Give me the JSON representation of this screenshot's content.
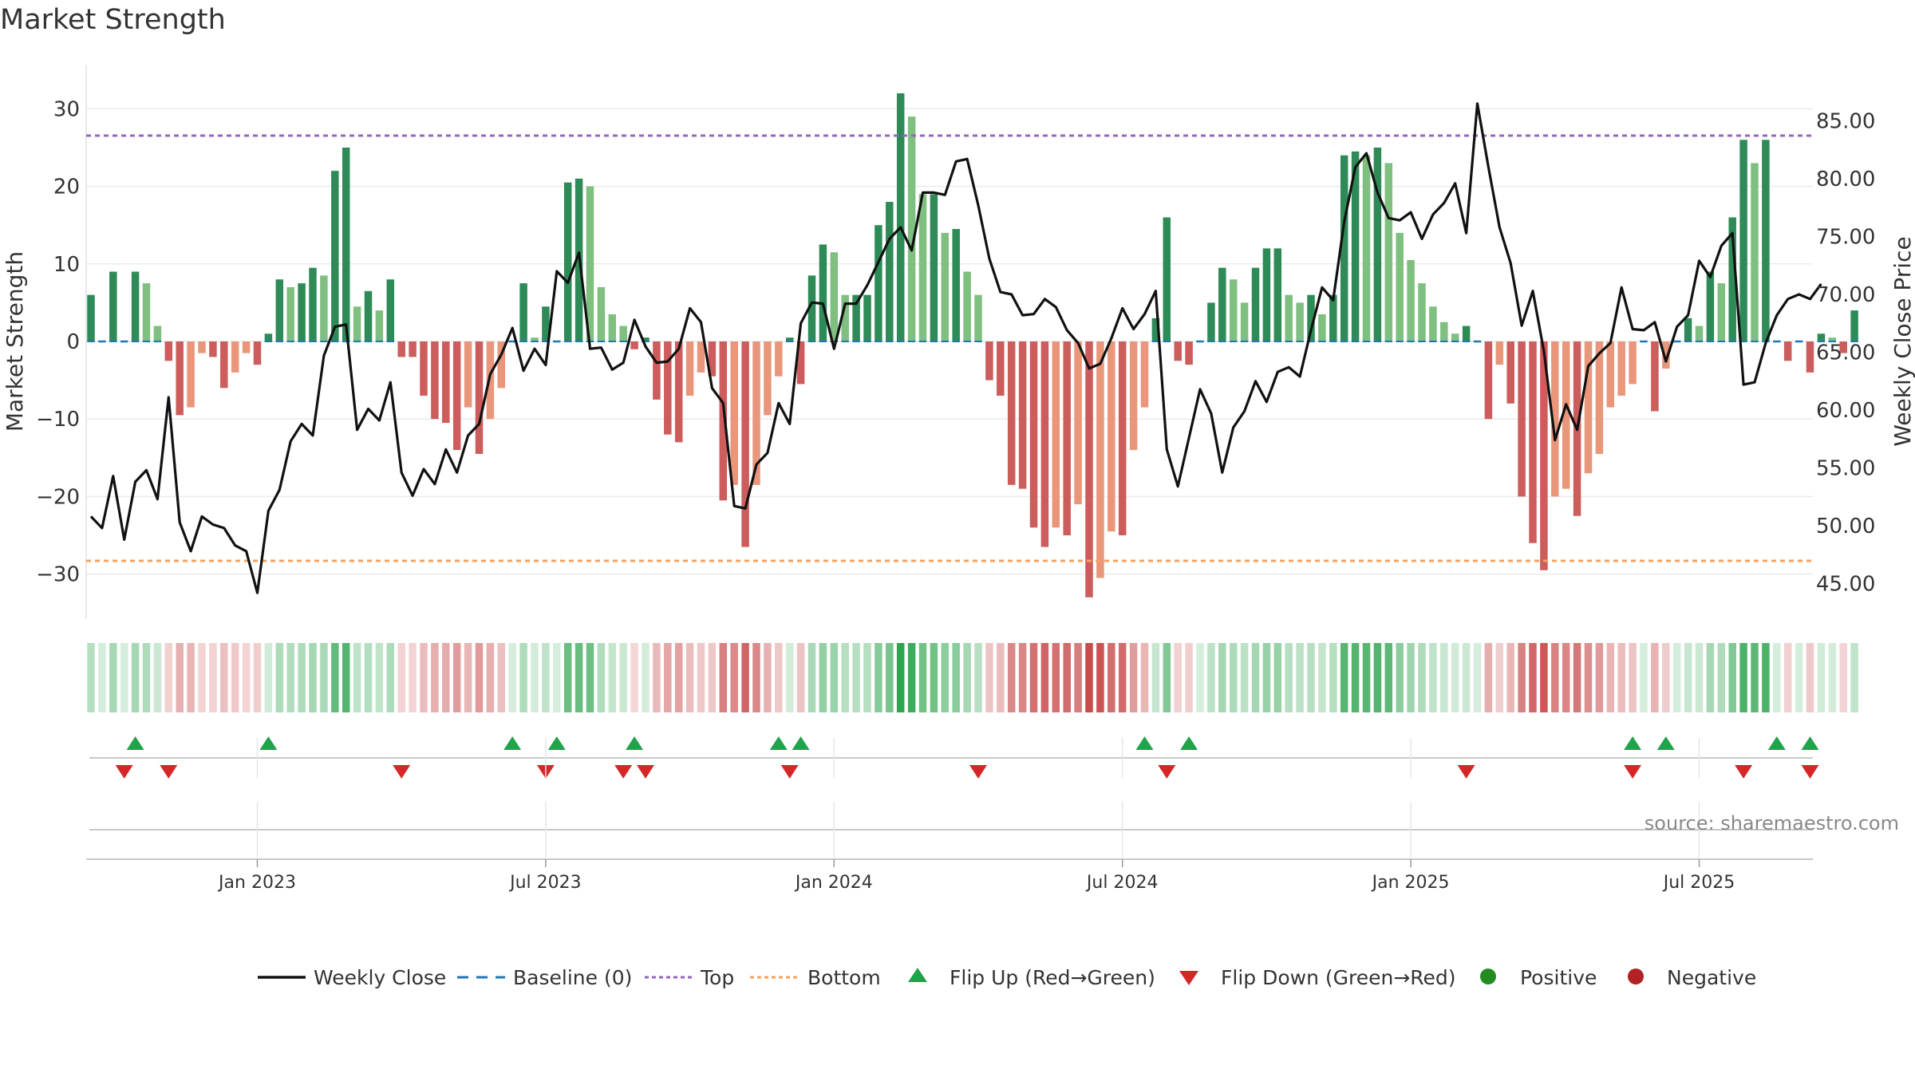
{
  "chart_data": {
    "type": "bar",
    "title": "Market Strength",
    "ylabel_left": "Market Strength",
    "ylabel_right": "Weekly Close Price",
    "source": "source: sharemaestro.com",
    "ylim_left": [
      -35,
      36
    ],
    "ylim_right": [
      41.0,
      88.0
    ],
    "left_ticks": [
      "30",
      "20",
      "10",
      "0",
      "−10",
      "−20",
      "−30"
    ],
    "left_tick_values": [
      30,
      20,
      10,
      0,
      -10,
      -20,
      -30
    ],
    "right_ticks": [
      "85.00",
      "80.00",
      "75.00",
      "70.00",
      "65.00",
      "60.00",
      "55.00",
      "50.00",
      "45.00"
    ],
    "right_tick_values": [
      85,
      80,
      75,
      70,
      65,
      60,
      55,
      50,
      45
    ],
    "x_labels": [
      "Jan 2023",
      "Jul 2023",
      "Jan 2024",
      "Jul 2024",
      "Jan 2025",
      "Jul 2025"
    ],
    "x_label_weeks": [
      15,
      41,
      67,
      93,
      119,
      145
    ],
    "top_line": 26.5,
    "bottom_line": -28.0,
    "strength": [
      6,
      0,
      9,
      0,
      9,
      7.5,
      2,
      -2.5,
      -9.5,
      -8.5,
      -1.5,
      -2,
      -6,
      -4,
      -1.5,
      -3,
      1,
      8,
      7,
      7.5,
      9.5,
      8.5,
      22,
      25,
      4.5,
      6.5,
      4,
      8,
      -2,
      -2,
      -7,
      -10,
      -10.5,
      -14,
      -8.5,
      -14.5,
      -10,
      -6,
      0,
      7.5,
      0.5,
      4.5,
      0,
      20.5,
      21,
      20,
      7,
      3.5,
      2,
      -1,
      0.5,
      -7.5,
      -12,
      -13,
      -7,
      -4,
      -4.5,
      -20.5,
      -18.5,
      -26.5,
      -18.5,
      -9.5,
      -4.5,
      0.5,
      -5.5,
      8.5,
      12.5,
      11.5,
      6,
      6,
      6,
      15,
      18,
      32,
      29,
      19,
      19,
      14,
      14.5,
      9,
      6,
      -5,
      -7,
      -18.5,
      -19,
      -24,
      -26.5,
      -24,
      -25,
      -21,
      -33,
      -30.5,
      -24.5,
      -25,
      -14,
      -8.5,
      3,
      16,
      -2.5,
      -3,
      0,
      5,
      9.5,
      8,
      5,
      9.5,
      12,
      12,
      6,
      5,
      6,
      3.5,
      6,
      24,
      24.5,
      24,
      25,
      23,
      14,
      10.5,
      7.5,
      4.5,
      2.5,
      1,
      2,
      0,
      -10,
      -3,
      -8,
      -20,
      -26,
      -29.5,
      -20,
      -19,
      -22.5,
      -17,
      -14.5,
      -8.5,
      -7,
      -5.5,
      0,
      -9,
      -3.5,
      0,
      3,
      2,
      9,
      7.5,
      16,
      26,
      23,
      26,
      0,
      -2.5,
      0,
      -4,
      1,
      0.5,
      -1.5,
      4
    ],
    "close": [
      50.8,
      49.8,
      54.3,
      48.8,
      53.8,
      54.8,
      52.3,
      61.1,
      50.3,
      47.8,
      50.8,
      50.1,
      49.8,
      48.3,
      47.8,
      44.2,
      51.3,
      53.1,
      57.3,
      58.8,
      57.8,
      64.7,
      67.2,
      67.4,
      58.3,
      60.1,
      59.1,
      62.4,
      54.6,
      52.6,
      54.9,
      53.6,
      56.6,
      54.6,
      57.8,
      58.8,
      63.1,
      64.8,
      67.1,
      63.4,
      65.3,
      63.9,
      72.0,
      71.0,
      73.6,
      65.3,
      65.4,
      63.5,
      64.1,
      67.8,
      65.5,
      64.1,
      64.2,
      65.3,
      68.8,
      67.6,
      61.9,
      60.6,
      51.7,
      51.5,
      55.3,
      56.3,
      60.6,
      58.8,
      67.5,
      69.3,
      69.2,
      65.3,
      69.2,
      69.2,
      70.8,
      72.8,
      74.8,
      75.8,
      73.8,
      78.8,
      78.8,
      78.6,
      81.5,
      81.7,
      77.7,
      73.1,
      70.2,
      70.0,
      68.2,
      68.3,
      69.6,
      68.9,
      66.9,
      65.8,
      63.6,
      64.0,
      66.2,
      68.8,
      67.0,
      68.3,
      70.3,
      56.6,
      53.4,
      57.6,
      61.8,
      59.7,
      54.6,
      58.5,
      59.9,
      62.5,
      60.7,
      63.3,
      63.7,
      62.9,
      66.9,
      70.6,
      69.5,
      76.3,
      81.0,
      82.2,
      78.8,
      76.6,
      76.4,
      77.1,
      74.8,
      76.9,
      77.9,
      79.6,
      75.3,
      86.5,
      81.0,
      75.8,
      72.7,
      67.3,
      70.3,
      65.1,
      57.4,
      60.5,
      58.3,
      63.8,
      64.9,
      65.8,
      70.6,
      67.0,
      66.9,
      67.6,
      64.2,
      67.2,
      68.2,
      72.9,
      71.5,
      74.2,
      75.3,
      62.2,
      62.4,
      65.8,
      68.2,
      69.6,
      70.0,
      69.6,
      70.9
    ],
    "flip_up_weeks": [
      4,
      16,
      38,
      42,
      49,
      62,
      64,
      95,
      99,
      139,
      142,
      152,
      155
    ],
    "flip_down_weeks": [
      3,
      7,
      28,
      41,
      48,
      50,
      63,
      80,
      97,
      124,
      139,
      149,
      155
    ],
    "legend": [
      "Weekly Close",
      "Baseline (0)",
      "Top",
      "Bottom",
      "Flip Up (Red→Green)",
      "Flip Down (Green→Red)",
      "Positive",
      "Negative"
    ],
    "colors": {
      "strong_green": "#2e8b57",
      "light_green": "#7fbf7f",
      "strong_red": "#cd5c5c",
      "light_red": "#e9967a",
      "close_line": "#111111",
      "baseline": "#1f77b4",
      "top": "#9467bd",
      "bottom": "#ff7f0e",
      "flip_up": "#22a24a",
      "flip_down": "#d62728",
      "positive": "#228b22",
      "negative": "#b22222"
    }
  }
}
